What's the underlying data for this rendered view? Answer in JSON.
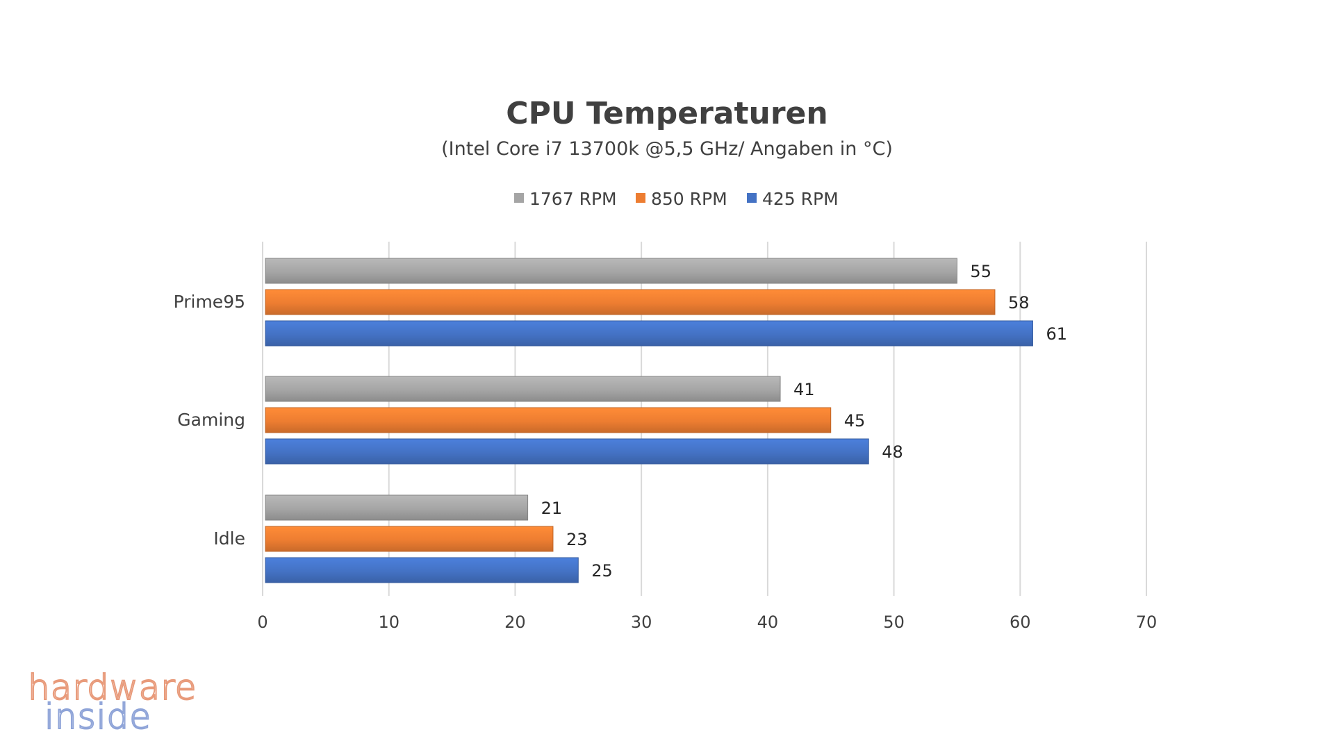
{
  "chart_data": {
    "type": "bar",
    "orientation": "horizontal",
    "title": "CPU Temperaturen",
    "subtitle": "(Intel Core i7 13700k @5,5 GHz/ Angaben in °C)",
    "categories": [
      "Prime95",
      "Gaming",
      "Idle"
    ],
    "series": [
      {
        "name": "1767 RPM",
        "color": "#a5a5a5",
        "values": [
          55,
          41,
          21
        ]
      },
      {
        "name": "850 RPM",
        "color": "#ed7d31",
        "values": [
          58,
          45,
          23
        ]
      },
      {
        "name": "425 RPM",
        "color": "#4472c4",
        "values": [
          61,
          48,
          25
        ]
      }
    ],
    "xlim": [
      0,
      70
    ],
    "xticks": [
      0,
      10,
      20,
      30,
      40,
      50,
      60,
      70
    ],
    "grid": true,
    "legend_position": "top"
  },
  "watermark": {
    "line1": "hardware",
    "line2": "inside"
  }
}
